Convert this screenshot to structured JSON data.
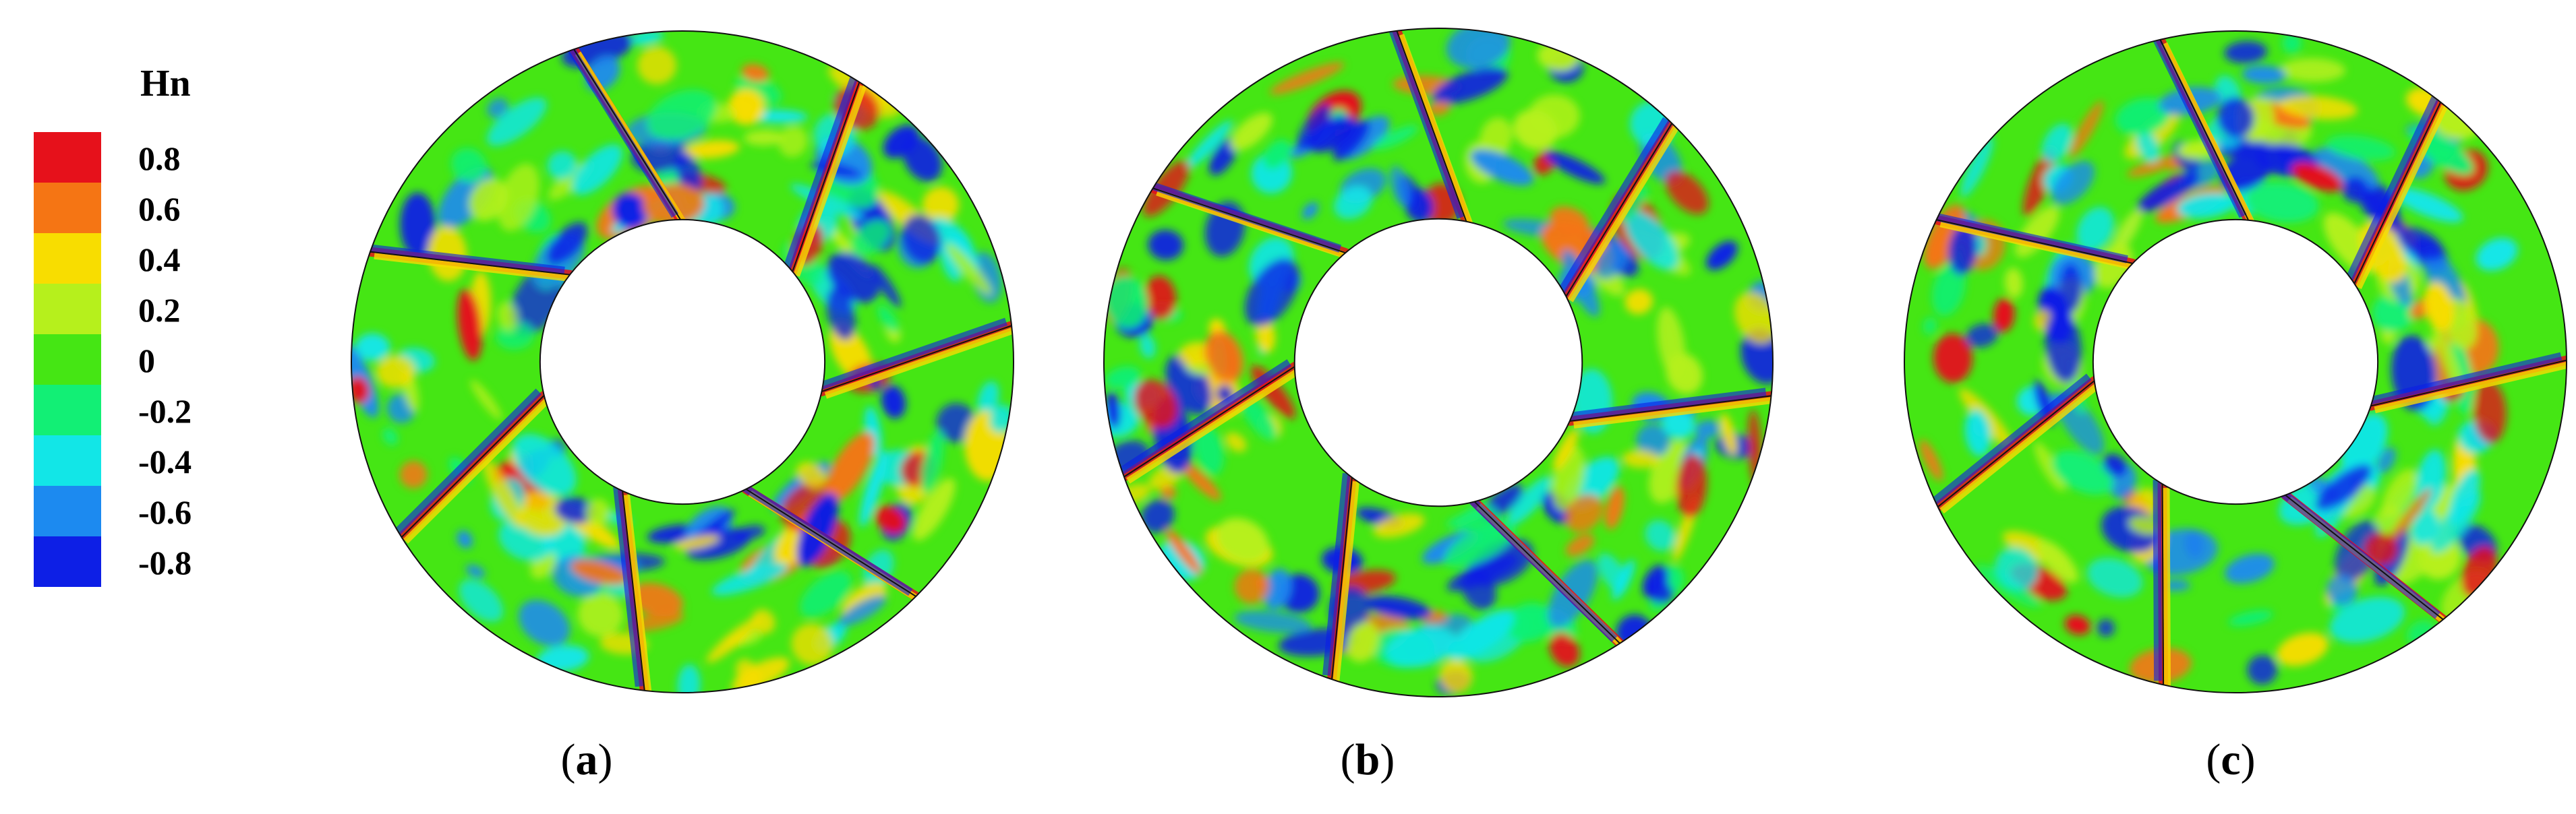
{
  "legend": {
    "title": "Hn",
    "levels": [
      {
        "label": "0.8",
        "color": "#e6111b"
      },
      {
        "label": "0.6",
        "color": "#f57514"
      },
      {
        "label": "0.4",
        "color": "#f8dd00"
      },
      {
        "label": "0.2",
        "color": "#b6f01c"
      },
      {
        "label": "0",
        "color": "#45e614"
      },
      {
        "label": "-0.2",
        "color": "#12ef75"
      },
      {
        "label": "-0.4",
        "color": "#12e6e7"
      },
      {
        "label": "-0.6",
        "color": "#1c8af0"
      },
      {
        "label": "-0.8",
        "color": "#0d1fe6"
      }
    ],
    "background_color": "#45e614"
  },
  "panels": [
    {
      "label_open": "(",
      "label_letter": "a",
      "label_close": ")"
    },
    {
      "label_open": "(",
      "label_letter": "b",
      "label_close": ")"
    },
    {
      "label_open": "(",
      "label_letter": "c",
      "label_close": ")"
    }
  ],
  "colors": {
    "red": "#e6111b",
    "orange": "#f57514",
    "yellow": "#f8dd00",
    "lime": "#b6f01c",
    "green": "#45e614",
    "teal": "#12ef75",
    "cyan": "#12e6e7",
    "lightblue": "#1c8af0",
    "blue": "#0d1fe6"
  }
}
